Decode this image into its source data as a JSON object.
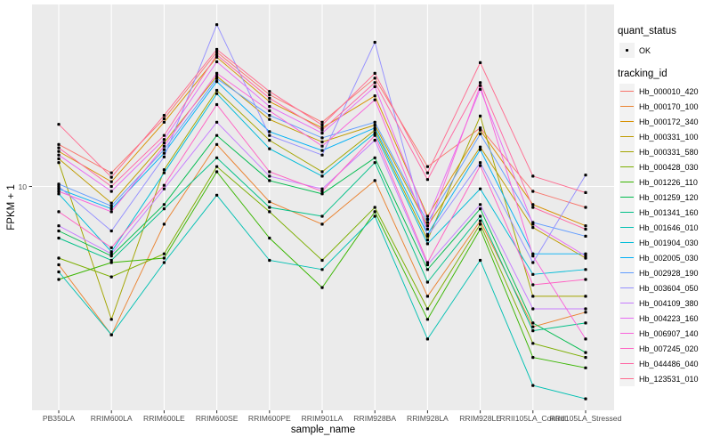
{
  "figure": {
    "background": "#FFFFFF",
    "panel_background": "#EBEBEB",
    "grid_color": "#FFFFFF",
    "axis_text_color": "#4D4D4D",
    "point_color": "#000000"
  },
  "axes": {
    "x_title": "sample_name",
    "y_title": "FPKM + 1",
    "y_tick_label": "10"
  },
  "legend": {
    "quant_title": "quant_status",
    "quant_items": [
      {
        "label": "OK",
        "shape": "point",
        "color": "#000000"
      }
    ],
    "tracking_title": "tracking_id"
  },
  "chart_data": {
    "type": "line",
    "x_axis": "sample_name",
    "y_axis": "FPKM + 1",
    "y_scale": "log10",
    "ylim": [
      1.5,
      45
    ],
    "y_breaks": [
      10
    ],
    "grid": "major-only",
    "legend_position": "right",
    "point_marker": "black small point (quant_status OK) at every sample",
    "categories": [
      "PB350LA",
      "RRIM600LA",
      "RRIM600LE",
      "RRIM600SE",
      "RRIM600PE",
      "RRIM901LA",
      "RRIM928BA",
      "RRIM928LA",
      "RRIM928LE",
      "RRII105LA_Control",
      "RRII105LA_Stressed"
    ],
    "series": [
      {
        "name": "Hb_000010_420",
        "color": "#F8766D",
        "values": [
          14.2,
          11.2,
          17.6,
          30.7,
          21.5,
          17.1,
          24.7,
          11.8,
          16.3,
          9.6,
          8.4
        ]
      },
      {
        "name": "Hb_000170_100",
        "color": "#EA8331",
        "values": [
          5.2,
          2.9,
          7.3,
          14.2,
          8.8,
          7.3,
          10.5,
          4.0,
          7.5,
          3.1,
          3.5
        ]
      },
      {
        "name": "Hb_000172_340",
        "color": "#D89000",
        "values": [
          13.4,
          10.4,
          17.1,
          29.4,
          20.3,
          16.3,
          21.3,
          7.8,
          16.0,
          8.6,
          7.2
        ]
      },
      {
        "name": "Hb_000331_100",
        "color": "#C09B00",
        "values": [
          12.6,
          8.7,
          14.4,
          25.1,
          17.5,
          14.5,
          16.7,
          7.2,
          13.9,
          7.1,
          5.5
        ]
      },
      {
        "name": "Hb_000331_580",
        "color": "#A3A500",
        "values": [
          12.2,
          3.3,
          11.5,
          22.3,
          14.7,
          11.3,
          16.0,
          6.4,
          18.0,
          4.0,
          4.0
        ]
      },
      {
        "name": "Hb_000428_030",
        "color": "#7CAE00",
        "values": [
          5.5,
          4.7,
          5.7,
          11.8,
          8.1,
          5.4,
          8.4,
          3.6,
          7.3,
          2.7,
          2.4
        ]
      },
      {
        "name": "Hb_001226_110",
        "color": "#39B600",
        "values": [
          4.6,
          5.3,
          5.5,
          11.3,
          6.5,
          4.3,
          8.1,
          3.3,
          7.0,
          2.4,
          2.2
        ]
      },
      {
        "name": "Hb_001259_120",
        "color": "#00BB4E",
        "values": [
          6.9,
          5.6,
          8.6,
          15.3,
          10.5,
          9.4,
          12.7,
          5.0,
          8.3,
          3.2,
          2.5
        ]
      },
      {
        "name": "Hb_001341_160",
        "color": "#00C087",
        "values": [
          6.5,
          5.4,
          8.3,
          12.7,
          8.4,
          7.8,
          12.2,
          4.5,
          7.8,
          3.0,
          3.2
        ]
      },
      {
        "name": "Hb_001646_010",
        "color": "#00C0B2",
        "values": [
          4.9,
          2.9,
          5.3,
          9.3,
          5.4,
          5.0,
          7.8,
          2.8,
          5.4,
          1.9,
          1.7
        ]
      },
      {
        "name": "Hb_001904_030",
        "color": "#00BCD8",
        "values": [
          9.4,
          5.8,
          11.2,
          21.7,
          13.7,
          10.9,
          15.6,
          6.2,
          9.8,
          4.8,
          5.0
        ]
      },
      {
        "name": "Hb_002005_030",
        "color": "#00B0F6",
        "values": [
          9.8,
          8.3,
          13.2,
          24.0,
          15.8,
          13.5,
          16.3,
          6.7,
          13.6,
          5.7,
          5.7
        ]
      },
      {
        "name": "Hb_002928_190",
        "color": "#619CFF",
        "values": [
          10.2,
          8.5,
          13.6,
          24.6,
          18.1,
          15.0,
          17.1,
          7.4,
          15.5,
          7.4,
          6.6
        ]
      },
      {
        "name": "Hb_003604_050",
        "color": "#9590FF",
        "values": [
          10.0,
          6.9,
          12.8,
          38.6,
          15.3,
          13.0,
          33.3,
          6.6,
          12.2,
          5.3,
          11.0
        ]
      },
      {
        "name": "Hb_004109_380",
        "color": "#C77CFF",
        "values": [
          7.2,
          5.7,
          9.8,
          17.1,
          10.9,
          9.8,
          14.7,
          5.2,
          8.6,
          3.6,
          3.6
        ]
      },
      {
        "name": "Hb_004223_160",
        "color": "#E76BF3",
        "values": [
          13.0,
          9.6,
          14.8,
          28.3,
          19.5,
          15.6,
          23.0,
          7.6,
          22.5,
          7.3,
          5.6
        ]
      },
      {
        "name": "Hb_006907_140",
        "color": "#FA62DB",
        "values": [
          9.6,
          8.1,
          14.0,
          25.7,
          18.8,
          14.0,
          20.6,
          7.0,
          23.2,
          5.6,
          2.8
        ]
      },
      {
        "name": "Hb_007245_020",
        "color": "#FF61C3",
        "values": [
          8.1,
          6.0,
          10.1,
          19.8,
          11.3,
          9.6,
          15.3,
          5.3,
          11.9,
          4.4,
          4.6
        ]
      },
      {
        "name": "Hb_044486_040",
        "color": "#FF67A4",
        "values": [
          13.8,
          10.0,
          15.3,
          30.0,
          20.9,
          16.0,
          23.8,
          10.6,
          23.8,
          8.4,
          7.0
        ]
      },
      {
        "name": "Hb_123531_010",
        "color": "#FF6C90",
        "values": [
          16.8,
          10.8,
          18.1,
          31.4,
          22.1,
          16.7,
          25.7,
          11.2,
          28.1,
          10.9,
          9.5
        ]
      }
    ]
  }
}
